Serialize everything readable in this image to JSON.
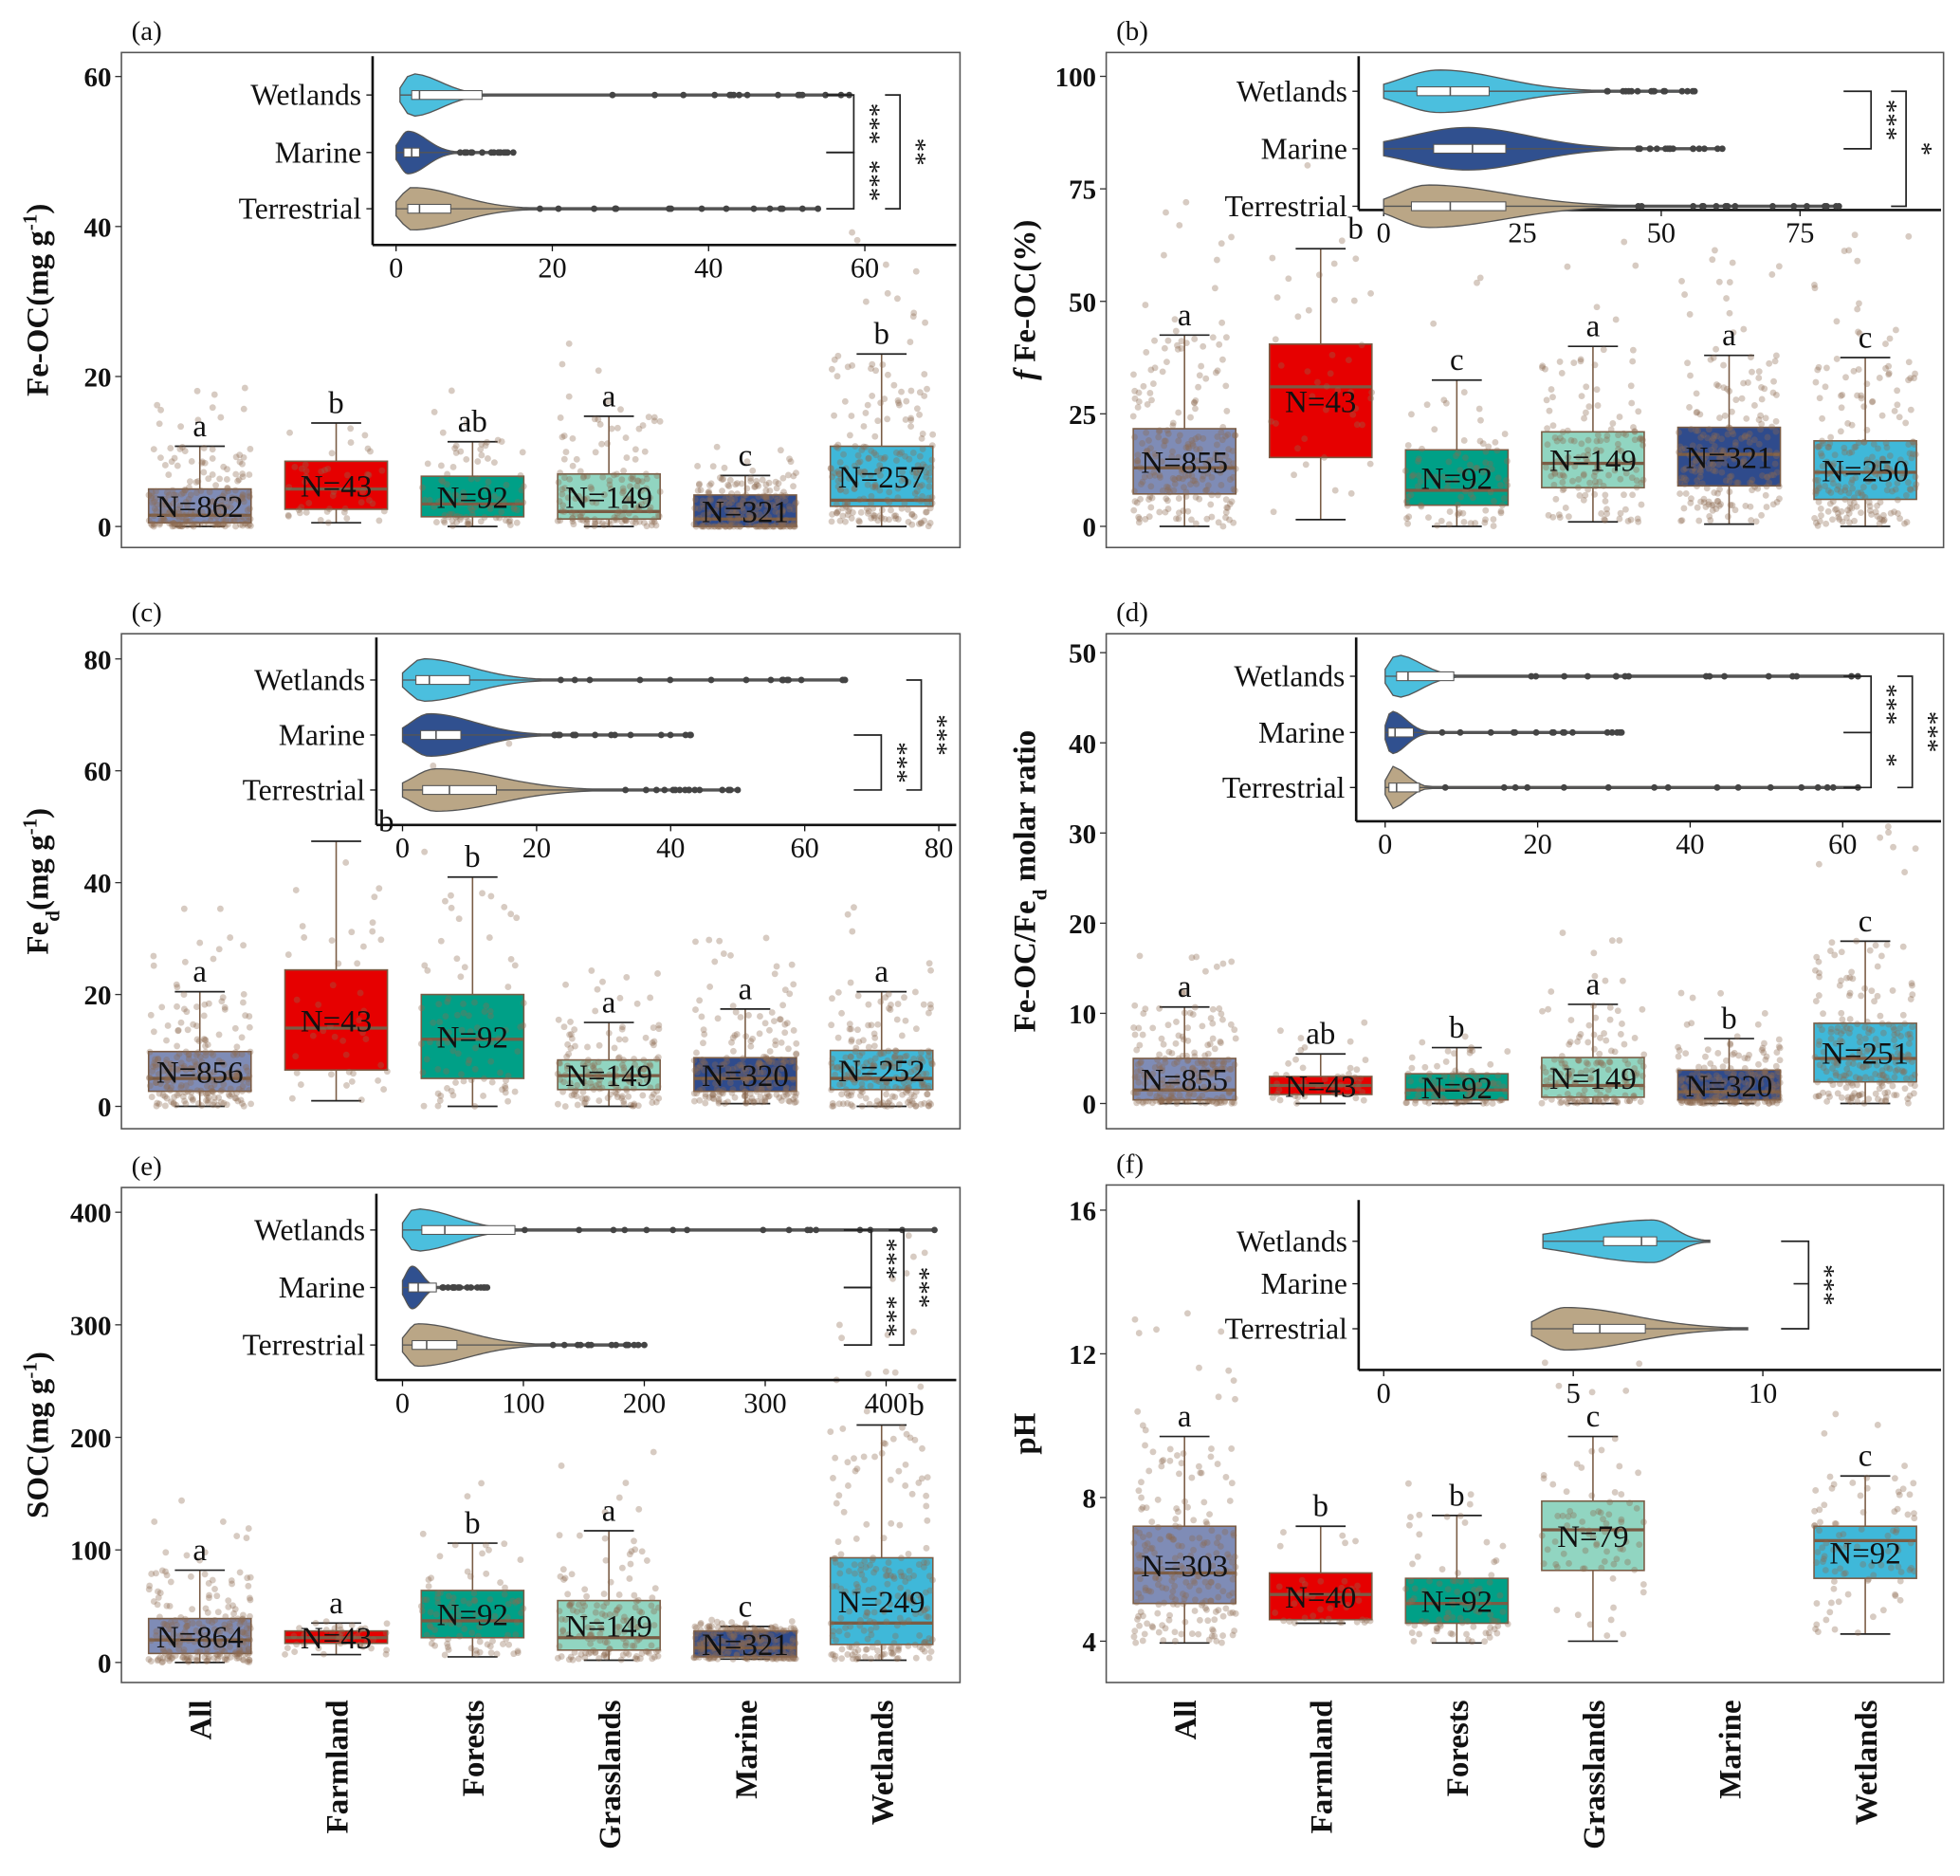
{
  "colors": {
    "All": "#7f8cb6",
    "Farmland": "#e60000",
    "Forests": "#00a087",
    "Grasslands": "#91d5c1",
    "Marine": "#2f4b8c",
    "Wetlands": "#3fb8d9",
    "violin_Wetlands": "#4bbfde",
    "violin_Marine": "#30508f",
    "violin_Terrestrial": "#baa686",
    "points": "#8b6b4f",
    "box_line": "#7a5c45"
  },
  "x_categories": [
    "All",
    "Farmland",
    "Forests",
    "Grasslands",
    "Marine",
    "Wetlands"
  ],
  "chart_data": [
    {
      "panel_label": "(a)",
      "type": "box",
      "ylabel": [
        {
          "text": "Fe-OC(mg g"
        },
        {
          "text": "-1",
          "style": "sup"
        },
        {
          "text": ")"
        }
      ],
      "ylim": [
        -2.8,
        63.2
      ],
      "yticks": [
        0,
        20,
        40,
        60
      ],
      "boxes": [
        {
          "category": "All",
          "n_label": "N=862",
          "letter": "a",
          "whisker_low": 0,
          "q1": 0.5,
          "median": 1.5,
          "q3": 5,
          "whisker_high": 10.7
        },
        {
          "category": "Farmland",
          "n_label": "N=43",
          "letter": "b",
          "whisker_low": 0.5,
          "q1": 2.3,
          "median": 5,
          "q3": 8.7,
          "whisker_high": 13.8
        },
        {
          "category": "Forests",
          "n_label": "N=92",
          "letter": "ab",
          "whisker_low": 0,
          "q1": 1.3,
          "median": 3,
          "q3": 6.7,
          "whisker_high": 11.3
        },
        {
          "category": "Grasslands",
          "n_label": "N=149",
          "letter": "a",
          "whisker_low": 0,
          "q1": 1,
          "median": 2,
          "q3": 7,
          "whisker_high": 14.7
        },
        {
          "category": "Marine",
          "n_label": "N=321",
          "letter": "c",
          "whisker_low": 0,
          "q1": 0,
          "median": 1,
          "q3": 4.2,
          "whisker_high": 6.8
        },
        {
          "category": "Wetlands",
          "n_label": "N=257",
          "letter": "b",
          "whisker_low": 0,
          "q1": 2.7,
          "median": 3.5,
          "q3": 10.7,
          "whisker_high": 23
        }
      ],
      "inset": {
        "type": "violin",
        "xlim": [
          -3,
          71.7
        ],
        "xticks": [
          0,
          20,
          40,
          60
        ],
        "groups": [
          {
            "name": "Wetlands",
            "min": 0.5,
            "mode": 2,
            "body_end": 12,
            "q1": 2,
            "median": 3,
            "q3": 11,
            "max": 58
          },
          {
            "name": "Marine",
            "min": 0,
            "mode": 1.5,
            "body_end": 8,
            "q1": 1,
            "median": 2,
            "q3": 3,
            "max": 15
          },
          {
            "name": "Terrestrial",
            "min": 0,
            "mode": 2,
            "body_end": 18,
            "q1": 1.5,
            "median": 3,
            "q3": 7,
            "max": 54
          }
        ],
        "significance": [
          {
            "from": "Wetlands",
            "to": "Marine",
            "label": "***",
            "level": 0
          },
          {
            "from": "Marine",
            "to": "Terrestrial",
            "label": "***",
            "level": 0
          },
          {
            "from": "Wetlands",
            "to": "Terrestrial",
            "label": "**",
            "level": 1
          }
        ]
      }
    },
    {
      "panel_label": "(b)",
      "type": "box",
      "ylabel": [
        {
          "text": "f",
          "style": "italic"
        },
        {
          "text": " Fe-OC(%)"
        }
      ],
      "ylim": [
        -4.7,
        105.3
      ],
      "yticks": [
        0,
        25,
        50,
        75,
        100
      ],
      "boxes": [
        {
          "category": "All",
          "n_label": "N=855",
          "letter": "a",
          "whisker_low": 0,
          "q1": 7.2,
          "median": 13,
          "q3": 21.7,
          "whisker_high": 42.5
        },
        {
          "category": "Farmland",
          "n_label": "N=43",
          "letter": "b",
          "whisker_low": 1.5,
          "q1": 15.3,
          "median": 31,
          "q3": 40.5,
          "whisker_high": 61.7
        },
        {
          "category": "Forests",
          "n_label": "N=92",
          "letter": "c",
          "whisker_low": 0,
          "q1": 4.7,
          "median": 8,
          "q3": 17,
          "whisker_high": 32.5
        },
        {
          "category": "Grasslands",
          "n_label": "N=149",
          "letter": "a",
          "whisker_low": 1,
          "q1": 8.6,
          "median": 14,
          "q3": 21,
          "whisker_high": 40
        },
        {
          "category": "Marine",
          "n_label": "N=321",
          "letter": "a",
          "whisker_low": 0.5,
          "q1": 9,
          "median": 16,
          "q3": 22,
          "whisker_high": 38
        },
        {
          "category": "Wetlands",
          "n_label": "N=250",
          "letter": "c",
          "whisker_low": 0,
          "q1": 6,
          "median": 12,
          "q3": 19,
          "whisker_high": 37.5
        }
      ],
      "inset": {
        "type": "violin",
        "xlim": [
          -4.5,
          100.4
        ],
        "xticks": [
          0,
          25,
          50,
          75
        ],
        "groups": [
          {
            "name": "Wetlands",
            "min": 0,
            "mode": 10,
            "body_end": 40,
            "q1": 6,
            "median": 12,
            "q3": 19,
            "max": 56
          },
          {
            "name": "Marine",
            "min": 0,
            "mode": 15,
            "body_end": 45,
            "q1": 9,
            "median": 16,
            "q3": 22,
            "max": 61
          },
          {
            "name": "Terrestrial",
            "min": 0,
            "mode": 8,
            "body_end": 45,
            "q1": 5,
            "median": 12,
            "q3": 22,
            "max": 82
          }
        ],
        "significance": [
          {
            "from": "Wetlands",
            "to": "Marine",
            "label": "***",
            "level": 0
          },
          {
            "from": "Wetlands",
            "to": "Terrestrial",
            "label": "*",
            "level": 1
          }
        ]
      }
    },
    {
      "panel_label": "(c)",
      "type": "box",
      "ylabel": [
        {
          "text": "Fe"
        },
        {
          "text": "d",
          "style": "sub"
        },
        {
          "text": "(mg g"
        },
        {
          "text": "-1",
          "style": "sup"
        },
        {
          "text": ")"
        }
      ],
      "ylim": [
        -4,
        84.5
      ],
      "yticks": [
        0,
        20,
        40,
        60,
        80
      ],
      "boxes": [
        {
          "category": "All",
          "n_label": "N=856",
          "letter": "a",
          "whisker_low": 0,
          "q1": 2.7,
          "median": 5,
          "q3": 9.8,
          "whisker_high": 20.5
        },
        {
          "category": "Farmland",
          "n_label": "N=43",
          "letter": "b",
          "whisker_low": 1,
          "q1": 6.5,
          "median": 14,
          "q3": 24.4,
          "whisker_high": 47.4
        },
        {
          "category": "Forests",
          "n_label": "N=92",
          "letter": "b",
          "whisker_low": 0,
          "q1": 5,
          "median": 12,
          "q3": 20,
          "whisker_high": 41
        },
        {
          "category": "Grasslands",
          "n_label": "N=149",
          "letter": "a",
          "whisker_low": 0,
          "q1": 3,
          "median": 5.5,
          "q3": 8.3,
          "whisker_high": 15
        },
        {
          "category": "Marine",
          "n_label": "N=320",
          "letter": "a",
          "whisker_low": 0.5,
          "q1": 2.7,
          "median": 5,
          "q3": 8.7,
          "whisker_high": 17.4
        },
        {
          "category": "Wetlands",
          "n_label": "N=252",
          "letter": "a",
          "whisker_low": 0,
          "q1": 3,
          "median": 5,
          "q3": 10,
          "whisker_high": 20.5
        }
      ],
      "inset": {
        "type": "violin",
        "xlim": [
          -3.9,
          82.6
        ],
        "xticks": [
          0,
          20,
          40,
          60,
          80
        ],
        "groups": [
          {
            "name": "Wetlands",
            "min": 0,
            "mode": 3,
            "body_end": 22,
            "q1": 2,
            "median": 4,
            "q3": 10,
            "max": 66
          },
          {
            "name": "Marine",
            "min": 0,
            "mode": 4,
            "body_end": 22,
            "q1": 2.7,
            "median": 5,
            "q3": 8.7,
            "max": 43
          },
          {
            "name": "Terrestrial",
            "min": 0,
            "mode": 5,
            "body_end": 30,
            "q1": 3,
            "median": 7,
            "q3": 14,
            "max": 50
          }
        ],
        "significance": [
          {
            "from": "Marine",
            "to": "Terrestrial",
            "label": "***",
            "level": 0
          },
          {
            "from": "Wetlands",
            "to": "Terrestrial",
            "label": "***",
            "level": 1
          }
        ]
      }
    },
    {
      "panel_label": "(d)",
      "type": "box",
      "ylabel": [
        {
          "text": "Fe-OC/Fe"
        },
        {
          "text": "d",
          "style": "sub"
        },
        {
          "text": " molar ratio"
        }
      ],
      "ylim": [
        -2.8,
        52.1
      ],
      "yticks": [
        0,
        10,
        20,
        30,
        40,
        50
      ],
      "boxes": [
        {
          "category": "All",
          "n_label": "N=855",
          "letter": "a",
          "whisker_low": 0,
          "q1": 0.4,
          "median": 1.5,
          "q3": 5,
          "whisker_high": 10.7
        },
        {
          "category": "Farmland",
          "n_label": "N=43",
          "letter": "ab",
          "whisker_low": 0,
          "q1": 1,
          "median": 2,
          "q3": 3,
          "whisker_high": 5.5
        },
        {
          "category": "Forests",
          "n_label": "N=92",
          "letter": "b",
          "whisker_low": 0,
          "q1": 0.4,
          "median": 1.5,
          "q3": 3.3,
          "whisker_high": 6.2
        },
        {
          "category": "Grasslands",
          "n_label": "N=149",
          "letter": "a",
          "whisker_low": 0,
          "q1": 0.7,
          "median": 2,
          "q3": 5.1,
          "whisker_high": 11
        },
        {
          "category": "Marine",
          "n_label": "N=320",
          "letter": "b",
          "whisker_low": 0,
          "q1": 0.4,
          "median": 1.3,
          "q3": 3.7,
          "whisker_high": 7.2
        },
        {
          "category": "Wetlands",
          "n_label": "N=251",
          "letter": "c",
          "whisker_low": 0,
          "q1": 2.4,
          "median": 5,
          "q3": 8.9,
          "whisker_high": 18
        }
      ],
      "inset": {
        "type": "violin",
        "xlim": [
          -3.8,
          72.9
        ],
        "xticks": [
          0,
          20,
          40,
          60
        ],
        "groups": [
          {
            "name": "Wetlands",
            "min": 0,
            "mode": 1.5,
            "body_end": 10,
            "q1": 1.5,
            "median": 3,
            "q3": 9,
            "max": 62
          },
          {
            "name": "Marine",
            "min": 0,
            "mode": 0.8,
            "body_end": 6,
            "q1": 0.4,
            "median": 1.3,
            "q3": 3.7,
            "max": 31
          },
          {
            "name": "Terrestrial",
            "min": 0,
            "mode": 0.8,
            "body_end": 6,
            "q1": 0.5,
            "median": 1.5,
            "q3": 4.5,
            "max": 62
          }
        ],
        "significance": [
          {
            "from": "Wetlands",
            "to": "Marine",
            "label": "***",
            "level": 0
          },
          {
            "from": "Marine",
            "to": "Terrestrial",
            "label": "*",
            "level": 0
          },
          {
            "from": "Wetlands",
            "to": "Terrestrial",
            "label": "***",
            "level": 1
          }
        ]
      }
    },
    {
      "panel_label": "(e)",
      "type": "box",
      "ylabel": [
        {
          "text": "SOC(mg g"
        },
        {
          "text": "-1",
          "style": "sup"
        },
        {
          "text": ")"
        }
      ],
      "ylim": [
        -17.8,
        422
      ],
      "yticks": [
        0,
        100,
        200,
        300,
        400
      ],
      "boxes": [
        {
          "category": "All",
          "n_label": "N=864",
          "letter": "a",
          "whisker_low": 0,
          "q1": 8,
          "median": 20,
          "q3": 39,
          "whisker_high": 82
        },
        {
          "category": "Farmland",
          "n_label": "N=43",
          "letter": "a",
          "whisker_low": 7,
          "q1": 17,
          "median": 22,
          "q3": 28,
          "whisker_high": 35
        },
        {
          "category": "Forests",
          "n_label": "N=92",
          "letter": "b",
          "whisker_low": 5,
          "q1": 22,
          "median": 37,
          "q3": 64,
          "whisker_high": 106
        },
        {
          "category": "Grasslands",
          "n_label": "N=149",
          "letter": "a",
          "whisker_low": 2,
          "q1": 11,
          "median": 22,
          "q3": 55,
          "whisker_high": 117
        },
        {
          "category": "Marine",
          "n_label": "N=321",
          "letter": "c",
          "whisker_low": 3,
          "q1": 5,
          "median": 13,
          "q3": 28,
          "whisker_high": 32
        },
        {
          "category": "Wetlands",
          "n_label": "N=249",
          "letter": "b",
          "whisker_low": 2,
          "q1": 16,
          "median": 35,
          "q3": 93,
          "whisker_high": 211
        }
      ],
      "inset": {
        "type": "violin",
        "xlim": [
          -21.6,
          458
        ],
        "xticks": [
          0,
          100,
          200,
          300,
          400
        ],
        "groups": [
          {
            "name": "Wetlands",
            "min": 0,
            "mode": 10,
            "body_end": 100,
            "q1": 16,
            "median": 35,
            "q3": 93,
            "max": 440
          },
          {
            "name": "Marine",
            "min": 0,
            "mode": 8,
            "body_end": 30,
            "q1": 5,
            "median": 13,
            "q3": 28,
            "max": 70
          },
          {
            "name": "Terrestrial",
            "min": 0,
            "mode": 12,
            "body_end": 120,
            "q1": 8,
            "median": 20,
            "q3": 45,
            "max": 200
          }
        ],
        "significance": [
          {
            "from": "Wetlands",
            "to": "Marine",
            "label": "***",
            "level": 0
          },
          {
            "from": "Marine",
            "to": "Terrestrial",
            "label": "***",
            "level": 0
          },
          {
            "from": "Wetlands",
            "to": "Terrestrial",
            "label": "***",
            "level": 1
          }
        ]
      }
    },
    {
      "panel_label": "(f)",
      "type": "box",
      "ylabel": [
        {
          "text": "pH"
        }
      ],
      "ylim": [
        2.85,
        16.7
      ],
      "yticks": [
        4,
        8,
        12,
        16
      ],
      "boxes": [
        {
          "category": "All",
          "n_label": "N=303",
          "letter": "a",
          "whisker_low": 3.95,
          "q1": 5.05,
          "median": 5.9,
          "q3": 7.2,
          "whisker_high": 9.7
        },
        {
          "category": "Farmland",
          "n_label": "N=40",
          "letter": "b",
          "whisker_low": 4.5,
          "q1": 4.6,
          "median": 5.3,
          "q3": 5.9,
          "whisker_high": 7.2
        },
        {
          "category": "Forests",
          "n_label": "N=92",
          "letter": "b",
          "whisker_low": 3.95,
          "q1": 4.5,
          "median": 5.05,
          "q3": 5.75,
          "whisker_high": 7.5
        },
        {
          "category": "Grasslands",
          "n_label": "N=79",
          "letter": "c",
          "whisker_low": 4,
          "q1": 5.97,
          "median": 7.1,
          "q3": 7.9,
          "whisker_high": 9.7
        },
        {
          "category": "Wetlands",
          "n_label": "N=92",
          "letter": "c",
          "whisker_low": 4.2,
          "q1": 5.75,
          "median": 6.8,
          "q3": 7.2,
          "whisker_high": 8.6
        }
      ],
      "inset": {
        "type": "violin",
        "xlim": [
          -0.66,
          14.7
        ],
        "xticks": [
          0,
          5,
          10
        ],
        "groups": [
          {
            "name": "Wetlands",
            "min": 4.2,
            "mode": 7.1,
            "body_end": 8.6,
            "q1": 5.8,
            "median": 6.8,
            "q3": 7.2,
            "max": 8.6
          },
          {
            "name": "Marine"
          },
          {
            "name": "Terrestrial",
            "min": 3.9,
            "mode": 4.8,
            "body_end": 9.6,
            "q1": 5.0,
            "median": 5.7,
            "q3": 6.9,
            "max": 9.6
          }
        ],
        "significance": [
          {
            "from": "Wetlands",
            "to": "Terrestrial",
            "label": "***",
            "level": 0,
            "mid_tick": "Marine"
          }
        ]
      }
    }
  ]
}
